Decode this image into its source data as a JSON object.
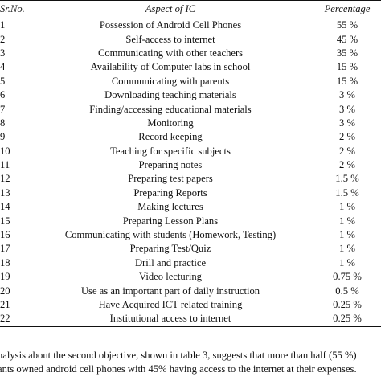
{
  "table": {
    "headers": {
      "sr_no": "Sr.No.",
      "aspect": "Aspect of IC",
      "percentage": "Percentage"
    },
    "rows": [
      {
        "sr": "1",
        "aspect": "Possession of Android Cell Phones",
        "pct": "55 %"
      },
      {
        "sr": "2",
        "aspect": "Self-access to internet",
        "pct": "45 %"
      },
      {
        "sr": "3",
        "aspect": "Communicating with other teachers",
        "pct": "35 %"
      },
      {
        "sr": "4",
        "aspect": "Availability of Computer labs in school",
        "pct": "15 %"
      },
      {
        "sr": "5",
        "aspect": "Communicating with parents",
        "pct": "15 %"
      },
      {
        "sr": "6",
        "aspect": "Downloading teaching materials",
        "pct": "3 %"
      },
      {
        "sr": "7",
        "aspect": "Finding/accessing educational materials",
        "pct": "3 %"
      },
      {
        "sr": "8",
        "aspect": "Monitoring",
        "pct": "3 %"
      },
      {
        "sr": "9",
        "aspect": "Record keeping",
        "pct": "2 %"
      },
      {
        "sr": "10",
        "aspect": "Teaching for specific subjects",
        "pct": "2 %"
      },
      {
        "sr": "11",
        "aspect": "Preparing notes",
        "pct": "2 %"
      },
      {
        "sr": "12",
        "aspect": "Preparing test papers",
        "pct": "1.5 %"
      },
      {
        "sr": "13",
        "aspect": "Preparing Reports",
        "pct": "1.5 %"
      },
      {
        "sr": "14",
        "aspect": "Making lectures",
        "pct": "1 %"
      },
      {
        "sr": "15",
        "aspect": "Preparing Lesson Plans",
        "pct": "1 %"
      },
      {
        "sr": "16",
        "aspect": "Communicating with students (Homework, Testing)",
        "pct": "1 %"
      },
      {
        "sr": "17",
        "aspect": "Preparing Test/Quiz",
        "pct": "1 %"
      },
      {
        "sr": "18",
        "aspect": "Drill and practice",
        "pct": "1 %"
      },
      {
        "sr": "19",
        "aspect": "Video lecturing",
        "pct": "0.75 %"
      },
      {
        "sr": "20",
        "aspect": "Use as an important part of daily instruction",
        "pct": "0.5 %"
      },
      {
        "sr": "21",
        "aspect": "Have Acquired ICT related training",
        "pct": "0.25 %"
      },
      {
        "sr": "22",
        "aspect": "Institutional access to internet",
        "pct": "0.25 %"
      }
    ]
  },
  "caption": {
    "line1": "nalysis about the second objective, shown in table 3, suggests that more than half (55 %)",
    "line2": "ants owned android cell phones with 45% having access to the internet at their expenses."
  }
}
